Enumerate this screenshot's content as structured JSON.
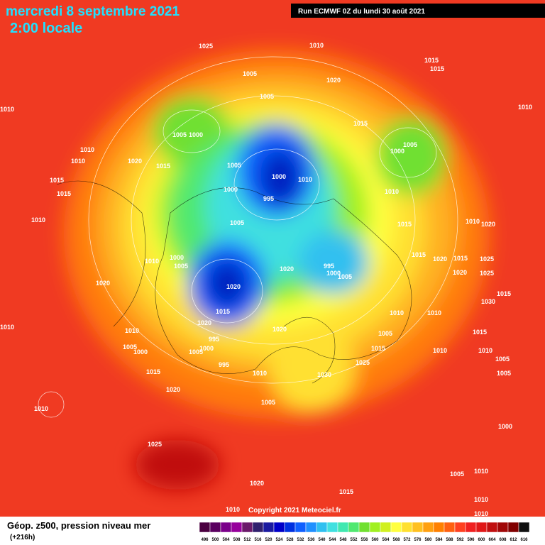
{
  "header": {
    "date": "mercredi 8 septembre 2021",
    "time": "2:00 locale",
    "run": "Run ECMWF 0Z du lundi 30 août 2021"
  },
  "footer": {
    "field": "Géop. z500, pression niveau mer",
    "lead": "(+216h)",
    "copyright": "Copyright 2021 Meteociel.fr"
  },
  "legend": {
    "labels": [
      "496",
      "500",
      "504",
      "508",
      "512",
      "516",
      "520",
      "524",
      "528",
      "532",
      "536",
      "540",
      "544",
      "548",
      "552",
      "556",
      "560",
      "564",
      "568",
      "572",
      "576",
      "580",
      "584",
      "588",
      "592",
      "596",
      "600",
      "604",
      "608",
      "612",
      "616"
    ],
    "colors": [
      "#4b0040",
      "#5a0060",
      "#7a008a",
      "#96009c",
      "#6a1a6a",
      "#30206e",
      "#1a1aa0",
      "#0000c8",
      "#0030e0",
      "#1060ff",
      "#2090ff",
      "#30c0f0",
      "#40e0e0",
      "#40e8b0",
      "#50e870",
      "#70e030",
      "#a0f020",
      "#d0f020",
      "#ffff40",
      "#ffe030",
      "#ffc020",
      "#ffa010",
      "#ff8000",
      "#ff6010",
      "#ff4020",
      "#f02020",
      "#e01818",
      "#c01010",
      "#a00808",
      "#800000",
      "#101010"
    ]
  },
  "isobar_labels": [
    "1025",
    "1010",
    "1005",
    "1015",
    "1015",
    "1020",
    "1005",
    "1010",
    "1010",
    "1015",
    "1005",
    "1000",
    "1005",
    "1000",
    "1010",
    "1010",
    "1020",
    "1015",
    "1005",
    "1000",
    "1010",
    "1015",
    "995",
    "1000",
    "1010",
    "1015",
    "1005",
    "1010",
    "1015",
    "1010",
    "1020",
    "1000",
    "1005",
    "1010",
    "995",
    "1000",
    "1005",
    "1020",
    "1015",
    "1020",
    "1015",
    "1020",
    "1025",
    "1025",
    "1020",
    "1020",
    "1015",
    "1015",
    "1030",
    "1010",
    "1010",
    "1020",
    "1020",
    "995",
    "1010",
    "1000",
    "1005",
    "1000",
    "1005",
    "1005",
    "1015",
    "1010",
    "1010",
    "1015",
    "1025",
    "995",
    "1010",
    "1030",
    "1015",
    "1005",
    "1005",
    "1020",
    "1010",
    "1010",
    "1005",
    "1000",
    "1025",
    "1005",
    "1010",
    "1020",
    "1015",
    "1010",
    "1010",
    "1010"
  ]
}
